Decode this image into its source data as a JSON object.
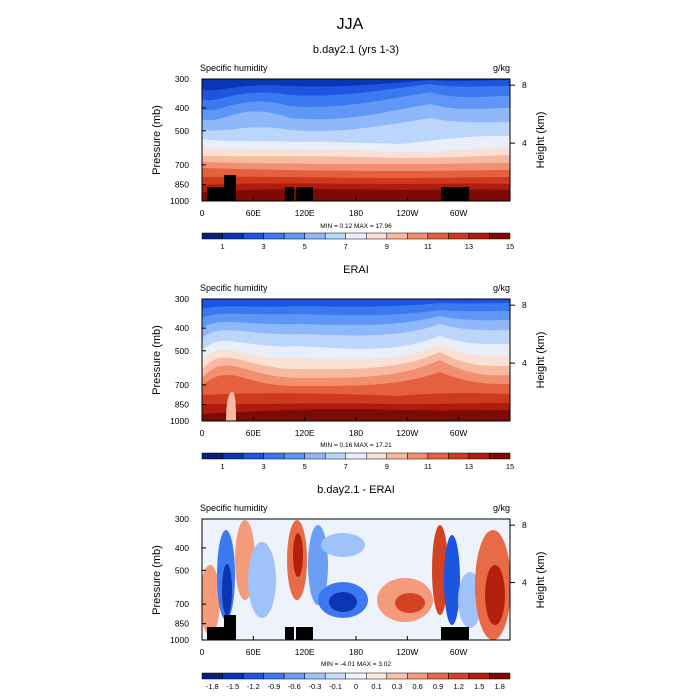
{
  "figure_title": "JJA",
  "colors": {
    "abs_levels": [
      "#08217a",
      "#0a36b4",
      "#1c55e0",
      "#3c78f0",
      "#5e97f6",
      "#8fb8fa",
      "#bcd6fb",
      "#e8effb",
      "#f9e1d6",
      "#f7b9a0",
      "#f18f6f",
      "#e4603f",
      "#cf3a1f",
      "#ad1c0c",
      "#7d0a05"
    ],
    "diff_levels": [
      "#08217a",
      "#0a36b4",
      "#1c55e0",
      "#3c78f0",
      "#6b9ff6",
      "#9fc2fa",
      "#c8dcfb",
      "#eef3fb",
      "#fbe6dc",
      "#f8c3ab",
      "#f39b7a",
      "#e76b47",
      "#d24324",
      "#b3200e",
      "#7d0a05"
    ],
    "topography": "#000000"
  },
  "chart_data": [
    {
      "type": "heatmap",
      "title": "b.day2.1 (yrs 1-3)",
      "left_label": "Specific humidity",
      "right_label": "g/kg",
      "ylabel": "Pressure (mb)",
      "ylabel_right": "Height (km)",
      "x_ticks": [
        "0",
        "60E",
        "120E",
        "180",
        "120W",
        "60W"
      ],
      "y_ticks": [
        "300",
        "400",
        "500",
        "700",
        "850",
        "1000"
      ],
      "y_right_ticks": [
        "8",
        "4"
      ],
      "stats": "MIN =   0.12  MAX =   17.96",
      "colorbar_labels": [
        "1",
        "3",
        "5",
        "7",
        "9",
        "11",
        "13",
        "15"
      ]
    },
    {
      "type": "heatmap",
      "title": "ERAI",
      "left_label": "Specific humidity",
      "right_label": "g/kg",
      "ylabel": "Pressure (mb)",
      "ylabel_right": "Height (km)",
      "x_ticks": [
        "0",
        "60E",
        "120E",
        "180",
        "120W",
        "60W"
      ],
      "y_ticks": [
        "300",
        "400",
        "500",
        "700",
        "850",
        "1000"
      ],
      "y_right_ticks": [
        "8",
        "4"
      ],
      "stats": "MIN =   0.16  MAX =   17.21",
      "colorbar_labels": [
        "1",
        "3",
        "5",
        "7",
        "9",
        "11",
        "13",
        "15"
      ]
    },
    {
      "type": "heatmap",
      "title": "b.day2.1 - ERAI",
      "left_label": "Specific humidity",
      "right_label": "g/kg",
      "ylabel": "Pressure (mb)",
      "ylabel_right": "Height (km)",
      "x_ticks": [
        "0",
        "60E",
        "120E",
        "180",
        "120W",
        "60W"
      ],
      "y_ticks": [
        "300",
        "400",
        "500",
        "700",
        "850",
        "1000"
      ],
      "y_right_ticks": [
        "8",
        "4"
      ],
      "stats": "MIN =  -4.01  MAX =   3.02",
      "colorbar_labels": [
        "-1.8",
        "-1.5",
        "-1.2",
        "-0.9",
        "-0.6",
        "-0.3",
        "-0.1",
        "0",
        "0.1",
        "0.3",
        "0.6",
        "0.9",
        "1.2",
        "1.5",
        "1.8"
      ]
    }
  ]
}
